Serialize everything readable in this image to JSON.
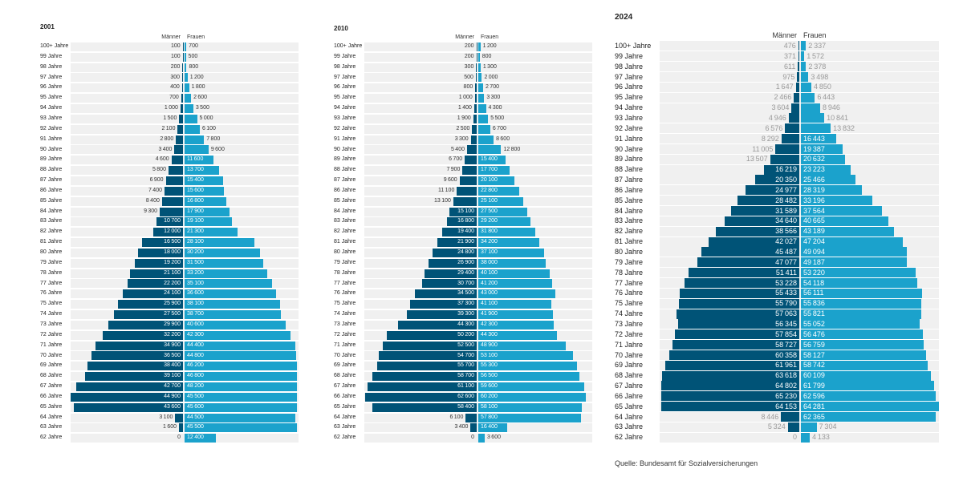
{
  "chart_data": [
    {
      "type": "bar",
      "title": "2001",
      "legend": {
        "maenner": "Männer",
        "frauen": "Frauen"
      },
      "categories": [
        "100+ Jahre",
        "99 Jahre",
        "98 Jahre",
        "97 Jahre",
        "96 Jahre",
        "95 Jahre",
        "94 Jahre",
        "93 Jahre",
        "92 Jahre",
        "91 Jahre",
        "90 Jahre",
        "89 Jahre",
        "88 Jahre",
        "87 Jahre",
        "86 Jahre",
        "85 Jahre",
        "84 Jahre",
        "83 Jahre",
        "82 Jahre",
        "81 Jahre",
        "80 Jahre",
        "79 Jahre",
        "78 Jahre",
        "77 Jahre",
        "76 Jahre",
        "75 Jahre",
        "74 Jahre",
        "73 Jahre",
        "72 Jahre",
        "71 Jahre",
        "70 Jahre",
        "69 Jahre",
        "68 Jahre",
        "67 Jahre",
        "66 Jahre",
        "65 Jahre",
        "64 Jahre",
        "63 Jahre",
        "62 Jahre"
      ],
      "series": [
        {
          "name": "Männer",
          "color": "#005377",
          "values": [
            100,
            100,
            200,
            300,
            400,
            700,
            1000,
            1500,
            2100,
            2800,
            3400,
            4600,
            5800,
            6900,
            7400,
            8400,
            9300,
            10700,
            12000,
            16500,
            18000,
            19200,
            21100,
            22200,
            24100,
            25900,
            27500,
            29900,
            32200,
            34900,
            36500,
            38400,
            39100,
            42700,
            44900,
            43600,
            3100,
            1600,
            0
          ]
        },
        {
          "name": "Frauen",
          "color": "#1ba2cc",
          "values": [
            700,
            500,
            800,
            1200,
            1800,
            2600,
            3500,
            5000,
            6100,
            7800,
            9600,
            11600,
            13700,
            15400,
            15600,
            16800,
            17900,
            19100,
            21300,
            28100,
            30200,
            31500,
            33200,
            35100,
            36600,
            38100,
            38700,
            40600,
            42300,
            44400,
            44800,
            46200,
            46800,
            48200,
            45500,
            45600,
            44500,
            45500,
            12400
          ]
        }
      ]
    },
    {
      "type": "bar",
      "title": "2010",
      "legend": {
        "maenner": "Männer",
        "frauen": "Frauen"
      },
      "categories": [
        "100+ Jahre",
        "99 Jahre",
        "98 Jahre",
        "97 Jahre",
        "96 Jahre",
        "95 Jahre",
        "94 Jahre",
        "93 Jahre",
        "92 Jahre",
        "91 Jahre",
        "90 Jahre",
        "89 Jahre",
        "88 Jahre",
        "87 Jahre",
        "86 Jahre",
        "85 Jahre",
        "84 Jahre",
        "83 Jahre",
        "82 Jahre",
        "81 Jahre",
        "80 Jahre",
        "79 Jahre",
        "78 Jahre",
        "77 Jahre",
        "76 Jahre",
        "75 Jahre",
        "74 Jahre",
        "73 Jahre",
        "72 Jahre",
        "71 Jahre",
        "70 Jahre",
        "69 Jahre",
        "68 Jahre",
        "67 Jahre",
        "66 Jahre",
        "65 Jahre",
        "64 Jahre",
        "63 Jahre",
        "62 Jahre"
      ],
      "series": [
        {
          "name": "Männer",
          "color": "#005377",
          "values": [
            200,
            200,
            300,
            500,
            800,
            1000,
            1400,
            1900,
            2500,
            3300,
            5400,
            6700,
            7900,
            9600,
            11100,
            13100,
            15100,
            16800,
            19400,
            21900,
            24800,
            26900,
            29400,
            30700,
            34500,
            37300,
            39300,
            44300,
            50200,
            52500,
            54700,
            55700,
            58700,
            61100,
            62600,
            58400,
            6100,
            3400,
            0
          ]
        },
        {
          "name": "Frauen",
          "color": "#1ba2cc",
          "values": [
            1200,
            800,
            1300,
            2000,
            2700,
            3300,
            4300,
            5500,
            6700,
            8600,
            12800,
            15400,
            17700,
            20100,
            22800,
            25100,
            27500,
            29200,
            31800,
            34200,
            37100,
            38000,
            40100,
            41200,
            43000,
            41100,
            41900,
            42300,
            44300,
            48900,
            53100,
            55300,
            56500,
            59600,
            60200,
            58100,
            57800,
            16400,
            3600
          ]
        }
      ]
    },
    {
      "type": "bar",
      "title": "2024",
      "legend": {
        "maenner": "Männer",
        "frauen": "Frauen"
      },
      "categories": [
        "100+ Jahre",
        "99 Jahre",
        "98 Jahre",
        "97 Jahre",
        "96 Jahre",
        "95 Jahre",
        "94 Jahre",
        "93 Jahre",
        "92 Jahre",
        "91 Jahre",
        "90 Jahre",
        "89 Jahre",
        "88 Jahre",
        "87 Jahre",
        "86 Jahre",
        "85 Jahre",
        "84 Jahre",
        "83 Jahre",
        "82 Jahre",
        "81 Jahre",
        "80 Jahre",
        "79 Jahre",
        "78 Jahre",
        "77 Jahre",
        "76 Jahre",
        "75 Jahre",
        "74 Jahre",
        "73 Jahre",
        "72 Jahre",
        "71 Jahre",
        "70 Jahre",
        "69 Jahre",
        "68 Jahre",
        "67 Jahre",
        "66 Jahre",
        "65 Jahre",
        "64 Jahre",
        "63 Jahre",
        "62 Jahre"
      ],
      "series": [
        {
          "name": "Männer",
          "color": "#005377",
          "values": [
            476,
            371,
            611,
            975,
            1647,
            2466,
            3604,
            4946,
            6576,
            8292,
            11005,
            13507,
            16219,
            20350,
            24977,
            28482,
            31589,
            34640,
            38566,
            42027,
            45487,
            47077,
            51411,
            53228,
            55433,
            55790,
            57063,
            56345,
            57854,
            58727,
            60358,
            61961,
            63618,
            64802,
            65230,
            64153,
            8446,
            5324,
            0
          ]
        },
        {
          "name": "Frauen",
          "color": "#1ba2cc",
          "values": [
            2337,
            1572,
            2378,
            3498,
            4850,
            6443,
            8946,
            10841,
            13832,
            16443,
            19387,
            20632,
            23223,
            25466,
            28319,
            33196,
            37564,
            40665,
            43189,
            47204,
            49094,
            49187,
            53220,
            54118,
            56111,
            55836,
            55821,
            55052,
            56476,
            56759,
            58127,
            58742,
            60109,
            61799,
            62596,
            64281,
            62365,
            7304,
            4133
          ]
        }
      ]
    }
  ],
  "source": "Quelle: Bundesamt für Sozialversicherungen"
}
